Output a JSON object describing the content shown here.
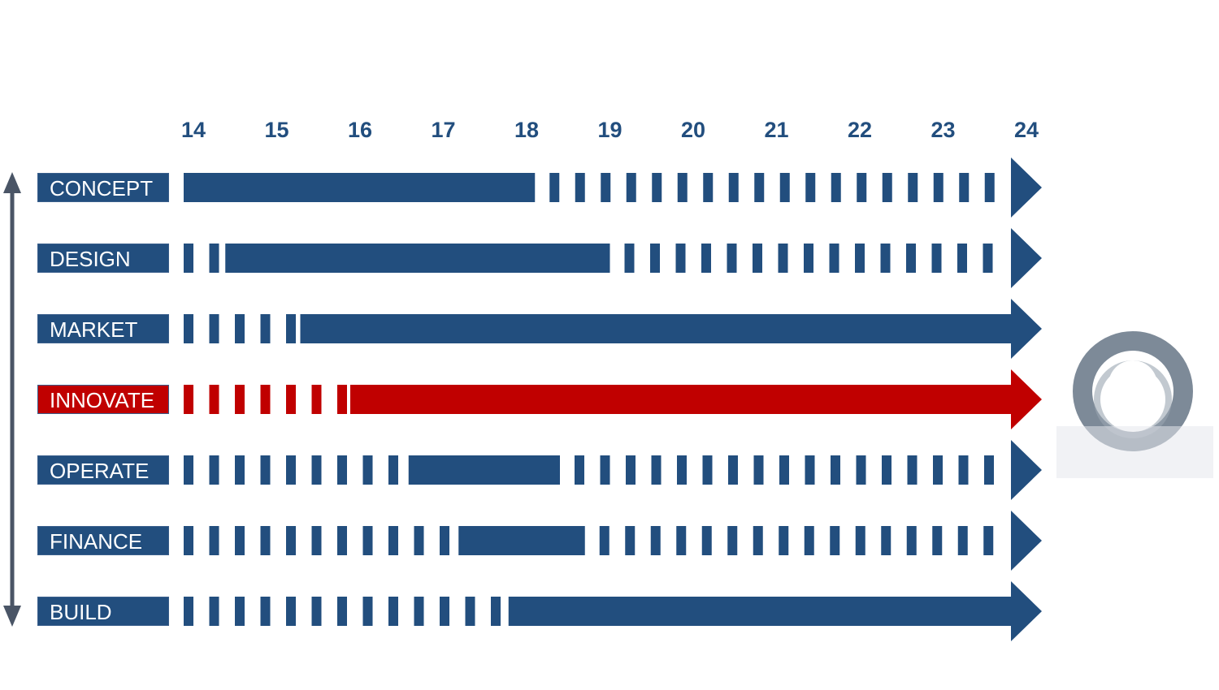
{
  "years": [
    "14",
    "15",
    "16",
    "17",
    "18",
    "19",
    "20",
    "21",
    "22",
    "23",
    "24"
  ],
  "rows": [
    {
      "label": "CONCEPT",
      "color": "#224e7e",
      "dashes_before": 0,
      "solid_start_year": 14,
      "solid_end_year": 18.1,
      "highlight": false
    },
    {
      "label": "DESIGN",
      "color": "#224e7e",
      "dashes_before": 2,
      "solid_start_year": 14.5,
      "solid_end_year": 19,
      "highlight": false
    },
    {
      "label": "MARKET",
      "color": "#224e7e",
      "dashes_before": 5,
      "solid_start_year": 15.4,
      "solid_end_year": 24,
      "highlight": false
    },
    {
      "label": "INNOVATE",
      "color": "#c00000",
      "dashes_before": 7,
      "solid_start_year": 16,
      "solid_end_year": 24,
      "highlight": true
    },
    {
      "label": "OPERATE",
      "color": "#224e7e",
      "dashes_before": 9,
      "solid_start_year": 16.7,
      "solid_end_year": 18.4,
      "highlight": false
    },
    {
      "label": "FINANCE",
      "color": "#224e7e",
      "dashes_before": 11,
      "solid_start_year": 17.3,
      "solid_end_year": 18.7,
      "highlight": false
    },
    {
      "label": "BUILD",
      "color": "#224e7e",
      "dashes_before": 13,
      "solid_start_year": 17.9,
      "solid_end_year": 24,
      "highlight": false
    }
  ],
  "colors": {
    "primary": "#224e7e",
    "highlight": "#c00000",
    "vertical_arrow": "#4a5566",
    "ring_icon": "#7d8a98"
  },
  "icons": {
    "side_arrow": "double-arrow-vertical-icon",
    "ring": "ring-logo-icon"
  }
}
